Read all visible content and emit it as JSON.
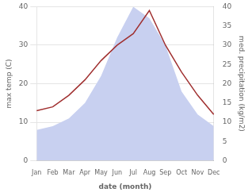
{
  "chart_data": {
    "type": "line",
    "categories": [
      "Jan",
      "Feb",
      "Mar",
      "Apr",
      "May",
      "Jun",
      "Jul",
      "Aug",
      "Sep",
      "Oct",
      "Nov",
      "Dec"
    ],
    "series": [
      {
        "type": "area",
        "color": "#c8d0f0",
        "axis": "y2",
        "values": [
          8,
          9,
          11,
          15,
          22,
          32,
          40,
          37,
          30,
          18,
          12,
          9
        ]
      },
      {
        "type": "line",
        "color": "#a03030",
        "values": [
          13,
          14,
          17,
          21,
          26,
          30,
          33,
          39,
          30,
          23,
          17,
          12
        ]
      }
    ],
    "xlabel": "date (month)",
    "ylabel": "max temp (C)",
    "y2label": "med. precipitation (kg/m2)",
    "ylim": [
      0,
      40
    ],
    "yticks": [
      0,
      10,
      20,
      30,
      40
    ],
    "y2lim": [
      0,
      40
    ],
    "y2ticks": [
      0,
      5,
      10,
      15,
      20,
      25,
      30,
      35,
      40
    ],
    "grid": true
  }
}
